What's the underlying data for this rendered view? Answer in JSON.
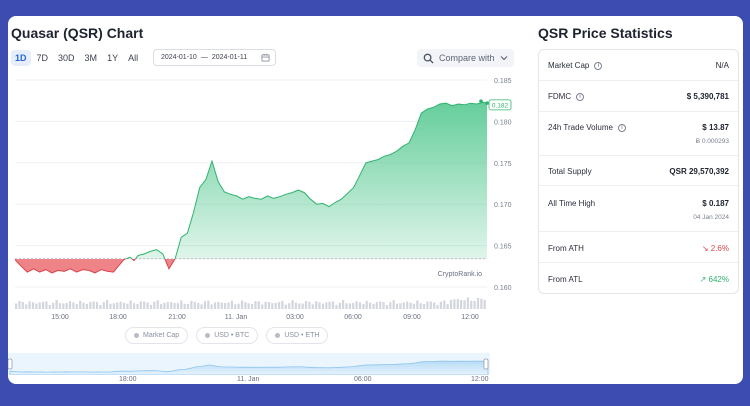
{
  "chart_panel": {
    "title": "Quasar (QSR) Chart",
    "ranges": [
      "1D",
      "7D",
      "30D",
      "3M",
      "1Y",
      "All"
    ],
    "active_range": "1D",
    "date_from": "2024-01-10",
    "date_sep": "—",
    "date_to": "2024-01-11",
    "compare_label": "Compare with",
    "watermark": "CryptoRank.io",
    "legend": [
      "Market Cap",
      "USD • BTC",
      "USD • ETH"
    ],
    "navigator_labels": [
      "18:00",
      "11. Jan",
      "06:00",
      "12:00"
    ]
  },
  "chart_data": {
    "type": "area",
    "x_ticks": [
      "15:00",
      "18:00",
      "21:00",
      "11. Jan",
      "03:00",
      "06:00",
      "09:00",
      "12:00"
    ],
    "y_ticks": [
      0.16,
      0.165,
      0.17,
      0.175,
      0.18,
      0.185
    ],
    "ylim": [
      0.16,
      0.185
    ],
    "baseline": 0.1634,
    "last_price": "0.182",
    "x": [
      0,
      0.3,
      0.6,
      0.9,
      1.2,
      1.5,
      1.8,
      2.1,
      2.4,
      2.7,
      3.0,
      3.3,
      3.6,
      3.9,
      4.2,
      4.5,
      4.8,
      5.0,
      5.3,
      5.6,
      5.8,
      6.0,
      6.3,
      6.6,
      6.9,
      7.2,
      7.5,
      7.8,
      8.1,
      8.4,
      8.7,
      9.0,
      9.3,
      9.6,
      9.9,
      10.2,
      10.5,
      10.8,
      11.1,
      11.4,
      11.7,
      12.0,
      12.3,
      12.6,
      12.9,
      13.2,
      13.5,
      13.8,
      14.1,
      14.4,
      14.7,
      15.0,
      15.3,
      15.6,
      15.9,
      16.2,
      16.5,
      16.8,
      17.1,
      17.4,
      17.7,
      18.0,
      18.3,
      18.6,
      18.9,
      19.2,
      19.5,
      19.8,
      20.1,
      20.4,
      20.7,
      21.0,
      21.3,
      21.6,
      21.9,
      22.2,
      22.5,
      22.8,
      23.0
    ],
    "y": [
      0.1633,
      0.1625,
      0.1618,
      0.1622,
      0.1618,
      0.1621,
      0.1617,
      0.162,
      0.1619,
      0.1622,
      0.1618,
      0.1621,
      0.162,
      0.1617,
      0.1621,
      0.1619,
      0.1618,
      0.1624,
      0.1633,
      0.1636,
      0.1632,
      0.1638,
      0.164,
      0.1643,
      0.1645,
      0.164,
      0.1622,
      0.1634,
      0.166,
      0.1665,
      0.169,
      0.172,
      0.173,
      0.1752,
      0.1727,
      0.1715,
      0.1712,
      0.171,
      0.1706,
      0.1709,
      0.1707,
      0.1706,
      0.171,
      0.1707,
      0.1709,
      0.1712,
      0.1714,
      0.1717,
      0.1714,
      0.1706,
      0.17,
      0.1701,
      0.1697,
      0.1702,
      0.1706,
      0.1713,
      0.172,
      0.1735,
      0.175,
      0.1752,
      0.1754,
      0.1758,
      0.176,
      0.1764,
      0.177,
      0.1774,
      0.179,
      0.181,
      0.1815,
      0.1817,
      0.1821,
      0.1822,
      0.1819,
      0.1821,
      0.182,
      0.1822,
      0.1821,
      0.1823,
      0.1822
    ]
  },
  "stats_panel": {
    "title": "QSR Price Statistics",
    "rows": [
      {
        "label": "Market Cap",
        "info": true,
        "value": "N/A"
      },
      {
        "label": "FDMC",
        "info": true,
        "value": "$ 5,390,781"
      },
      {
        "label": "24h Trade Volume",
        "info": true,
        "value": "$ 13.87",
        "sub": "Ƀ 0.000293"
      },
      {
        "label": "Total Supply",
        "info": false,
        "value": "QSR 29,570,392"
      },
      {
        "label": "All Time High",
        "info": false,
        "value": "$ 0.187",
        "sub": "04 Jan 2024"
      },
      {
        "label": "From ATH",
        "info": false,
        "value": "↘ 2.6%",
        "tone": "neg"
      },
      {
        "label": "From ATL",
        "info": false,
        "value": "↗ 642%",
        "tone": "pos"
      }
    ]
  },
  "colors": {
    "background": "#3d4cb0",
    "up_fill": "#4bc58a",
    "down_fill": "#ef5a5f",
    "active_range": "#2566d8"
  }
}
